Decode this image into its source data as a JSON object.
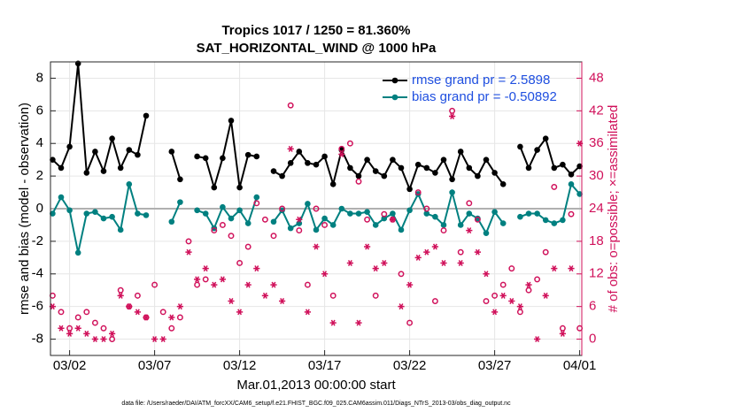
{
  "chart_data": {
    "type": "line",
    "title": "Tropics 1017 / 1250 = 81.360%",
    "subtitle": "SAT_HORIZONTAL_WIND @ 1000 hPa",
    "x_label": "Mar.01,2013 00:00:00 start",
    "y_label": "rmse and bias (model - observation)",
    "y2_label": "# of obs: o=possible; ×=assimilated",
    "footnote": "data file: /Users/raeder/DAI/ATM_forcXX/CAM6_setup/f.e21.FHIST_BGC.f09_025.CAM6assim.011/Diags_NTrS_2013-03/obs_diag_output.nc",
    "x": [
      0,
      0.5,
      1,
      1.5,
      2,
      2.5,
      3,
      3.5,
      4,
      4.5,
      5,
      5.5,
      6,
      6.5,
      7,
      7.5,
      8,
      8.5,
      9,
      9.5,
      10,
      10.5,
      11,
      11.5,
      12,
      12.5,
      13,
      13.5,
      14,
      14.5,
      15,
      15.5,
      16,
      16.5,
      17,
      17.5,
      18,
      18.5,
      19,
      19.5,
      20,
      20.5,
      21,
      21.5,
      22,
      22.5,
      23,
      23.5,
      24,
      24.5,
      25,
      25.5,
      26,
      26.5,
      27,
      27.5,
      28,
      28.5,
      29,
      29.5,
      30,
      30.5,
      31
    ],
    "xlim": [
      -0.125,
      31.125
    ],
    "xticks": [
      {
        "value": 1,
        "label": "03/02"
      },
      {
        "value": 6,
        "label": "03/07"
      },
      {
        "value": 11,
        "label": "03/12"
      },
      {
        "value": 16,
        "label": "03/17"
      },
      {
        "value": 21,
        "label": "03/22"
      },
      {
        "value": 26,
        "label": "03/27"
      },
      {
        "value": 31,
        "label": "04/01"
      }
    ],
    "ylim": [
      -9,
      9
    ],
    "yticks": [
      -8,
      -6,
      -4,
      -2,
      0,
      2,
      4,
      6,
      8
    ],
    "y2lim": [
      -3,
      51
    ],
    "y2ticks": [
      0,
      6,
      12,
      18,
      24,
      30,
      36,
      42,
      48
    ],
    "grid": true,
    "legend_position": "top-right",
    "legend_text_color": "#1f4fe0",
    "y2_color": "#d0105a",
    "series": [
      {
        "name": "rmse grand pr = 2.5898",
        "color": "#000000",
        "marker": "dot",
        "values": [
          3.0,
          2.5,
          3.8,
          8.9,
          2.2,
          3.5,
          2.3,
          4.3,
          2.5,
          3.6,
          3.3,
          5.7,
          null,
          null,
          3.5,
          1.8,
          null,
          3.2,
          3.1,
          1.3,
          3.1,
          5.4,
          1.3,
          3.3,
          3.2,
          null,
          2.3,
          2.0,
          2.8,
          3.5,
          2.8,
          2.7,
          3.2,
          1.5,
          3.6,
          2.5,
          2.0,
          3.0,
          2.3,
          2.0,
          3.0,
          2.5,
          1.2,
          2.7,
          2.5,
          2.2,
          3.0,
          1.8,
          3.5,
          2.5,
          2.0,
          3.0,
          2.2,
          1.5,
          null,
          3.8,
          2.5,
          3.6,
          4.3,
          2.5,
          2.7,
          2.1,
          2.6
        ]
      },
      {
        "name": "bias grand pr = -0.50892",
        "color": "#008080",
        "marker": "dot",
        "values": [
          -0.3,
          0.7,
          -0.1,
          -2.7,
          -0.3,
          -0.2,
          -0.6,
          -0.5,
          -1.3,
          1.5,
          -0.3,
          -0.4,
          null,
          null,
          -0.8,
          0.4,
          null,
          -0.1,
          -0.3,
          -1.2,
          0.1,
          -0.6,
          -0.1,
          -0.9,
          0.7,
          null,
          -0.8,
          -0.1,
          -1.2,
          -0.9,
          0.3,
          -1.3,
          -0.6,
          -1.0,
          0.0,
          -0.3,
          -0.3,
          -0.2,
          -1.0,
          -0.6,
          -0.3,
          -1.3,
          -0.1,
          0.9,
          -0.3,
          -0.5,
          -1.0,
          1.0,
          -1.0,
          -0.3,
          -0.6,
          -1.5,
          -0.2,
          -0.9,
          null,
          -0.5,
          -0.3,
          -0.3,
          -0.7,
          -0.9,
          -0.7,
          1.5,
          0.9
        ]
      },
      {
        "color": "#d0105a",
        "marker": "o",
        "axis": "y2",
        "values": [
          8,
          5,
          2,
          4,
          5,
          3,
          2,
          0,
          9,
          6,
          8,
          4,
          10,
          5,
          2,
          4,
          18,
          10,
          11,
          20,
          21,
          19,
          14,
          17,
          25,
          22,
          19,
          24,
          43,
          20,
          10,
          24,
          21,
          8,
          35,
          36,
          29,
          22,
          8,
          23,
          22,
          12,
          3,
          27,
          24,
          7,
          20,
          42,
          16,
          25,
          22,
          7,
          8,
          10,
          13,
          5,
          9,
          11,
          16,
          28,
          2,
          23,
          2
        ]
      },
      {
        "color": "#d0105a",
        "marker": "star",
        "axis": "y2",
        "values": [
          6,
          2,
          1,
          2,
          1,
          0,
          0,
          1,
          8,
          6,
          5,
          4,
          0,
          0,
          4,
          6,
          16,
          11,
          13,
          10,
          11,
          7,
          5,
          10,
          13,
          8,
          10,
          7,
          35,
          22,
          5,
          17,
          12,
          3,
          34,
          14,
          3,
          17,
          13,
          14,
          22,
          6,
          10,
          15,
          16,
          17,
          14,
          41,
          14,
          20,
          16,
          12,
          5,
          8,
          7,
          6,
          10,
          0,
          8,
          13,
          1,
          13,
          36
        ]
      }
    ]
  }
}
